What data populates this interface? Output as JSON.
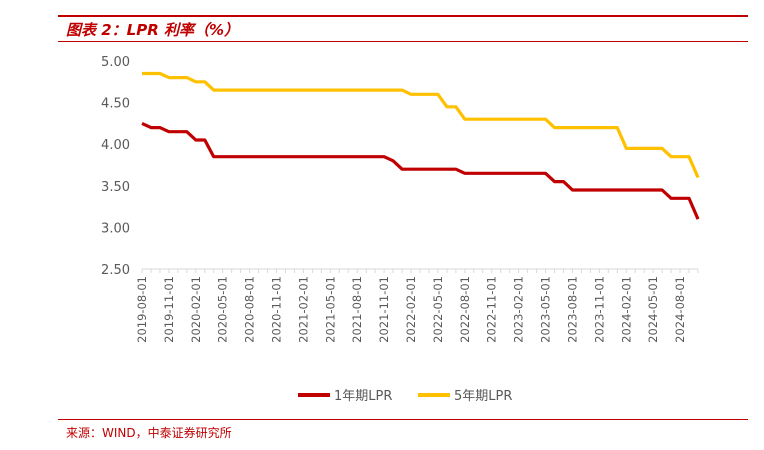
{
  "header": {
    "title": "图表 2：LPR 利率（%）"
  },
  "footer": {
    "source": "来源：WIND，中泰证券研究所"
  },
  "colors": {
    "accent": "#c00000",
    "series_1y": "#c00000",
    "series_5y": "#ffc000"
  },
  "chart_data": {
    "type": "line",
    "title": "图表 2：LPR 利率（%）",
    "xlabel": "",
    "ylabel": "",
    "ylim": [
      2.5,
      5.0
    ],
    "yticks": [
      "5.00",
      "4.50",
      "4.00",
      "3.50",
      "3.00",
      "2.50"
    ],
    "ytick_values": [
      5.0,
      4.5,
      4.0,
      3.5,
      3.0,
      2.5
    ],
    "xtick_labels": [
      "2019-08-01",
      "2019-11-01",
      "2020-02-01",
      "2020-05-01",
      "2020-08-01",
      "2020-11-01",
      "2021-02-01",
      "2021-05-01",
      "2021-08-01",
      "2021-11-01",
      "2022-02-01",
      "2022-05-01",
      "2022-08-01",
      "2022-11-01",
      "2023-02-01",
      "2023-05-01",
      "2023-08-01",
      "2023-11-01",
      "2024-02-01",
      "2024-05-01",
      "2024-08-01"
    ],
    "grid": false,
    "legend_position": "bottom",
    "x": [
      "2019-08",
      "2019-09",
      "2019-10",
      "2019-11",
      "2019-12",
      "2020-01",
      "2020-02",
      "2020-03",
      "2020-04",
      "2020-05",
      "2020-06",
      "2020-07",
      "2020-08",
      "2020-09",
      "2020-10",
      "2020-11",
      "2020-12",
      "2021-01",
      "2021-02",
      "2021-03",
      "2021-04",
      "2021-05",
      "2021-06",
      "2021-07",
      "2021-08",
      "2021-09",
      "2021-10",
      "2021-11",
      "2021-12",
      "2022-01",
      "2022-02",
      "2022-03",
      "2022-04",
      "2022-05",
      "2022-06",
      "2022-07",
      "2022-08",
      "2022-09",
      "2022-10",
      "2022-11",
      "2022-12",
      "2023-01",
      "2023-02",
      "2023-03",
      "2023-04",
      "2023-05",
      "2023-06",
      "2023-07",
      "2023-08",
      "2023-09",
      "2023-10",
      "2023-11",
      "2023-12",
      "2024-01",
      "2024-02",
      "2024-03",
      "2024-04",
      "2024-05",
      "2024-06",
      "2024-07",
      "2024-08",
      "2024-09",
      "2024-10"
    ],
    "series": [
      {
        "name": "1年期LPR",
        "values": [
          4.25,
          4.2,
          4.2,
          4.15,
          4.15,
          4.15,
          4.05,
          4.05,
          3.85,
          3.85,
          3.85,
          3.85,
          3.85,
          3.85,
          3.85,
          3.85,
          3.85,
          3.85,
          3.85,
          3.85,
          3.85,
          3.85,
          3.85,
          3.85,
          3.85,
          3.85,
          3.85,
          3.85,
          3.8,
          3.7,
          3.7,
          3.7,
          3.7,
          3.7,
          3.7,
          3.7,
          3.65,
          3.65,
          3.65,
          3.65,
          3.65,
          3.65,
          3.65,
          3.65,
          3.65,
          3.65,
          3.55,
          3.55,
          3.45,
          3.45,
          3.45,
          3.45,
          3.45,
          3.45,
          3.45,
          3.45,
          3.45,
          3.45,
          3.45,
          3.35,
          3.35,
          3.35,
          3.1
        ]
      },
      {
        "name": "5年期LPR",
        "values": [
          4.85,
          4.85,
          4.85,
          4.8,
          4.8,
          4.8,
          4.75,
          4.75,
          4.65,
          4.65,
          4.65,
          4.65,
          4.65,
          4.65,
          4.65,
          4.65,
          4.65,
          4.65,
          4.65,
          4.65,
          4.65,
          4.65,
          4.65,
          4.65,
          4.65,
          4.65,
          4.65,
          4.65,
          4.65,
          4.65,
          4.6,
          4.6,
          4.6,
          4.6,
          4.45,
          4.45,
          4.3,
          4.3,
          4.3,
          4.3,
          4.3,
          4.3,
          4.3,
          4.3,
          4.3,
          4.3,
          4.2,
          4.2,
          4.2,
          4.2,
          4.2,
          4.2,
          4.2,
          4.2,
          3.95,
          3.95,
          3.95,
          3.95,
          3.95,
          3.85,
          3.85,
          3.85,
          3.6
        ]
      }
    ]
  }
}
